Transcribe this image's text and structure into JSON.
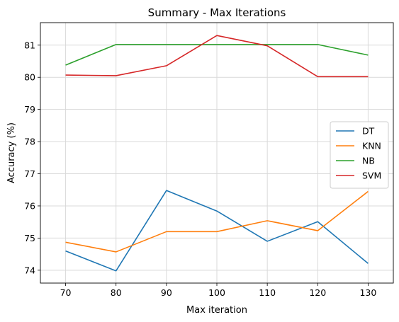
{
  "chart_data": {
    "type": "line",
    "title": "Summary - Max Iterations",
    "xlabel": "Max iteration",
    "ylabel": "Accuracy (%)",
    "x": [
      70,
      80,
      90,
      100,
      110,
      120,
      130
    ],
    "xlim": [
      65,
      135
    ],
    "ylim": [
      73.6,
      81.7
    ],
    "x_ticks": [
      70,
      80,
      90,
      100,
      110,
      120,
      130
    ],
    "y_ticks": [
      74,
      75,
      76,
      77,
      78,
      79,
      80,
      81
    ],
    "grid": true,
    "legend_position": "center-right",
    "series": [
      {
        "name": "DT",
        "color": "#1f77b4",
        "values": [
          74.6,
          73.98,
          76.48,
          75.84,
          74.9,
          75.51,
          74.21
        ]
      },
      {
        "name": "KNN",
        "color": "#ff7f0e",
        "values": [
          74.87,
          74.57,
          75.2,
          75.2,
          75.54,
          75.23,
          76.45
        ]
      },
      {
        "name": "NB",
        "color": "#2ca02c",
        "values": [
          80.38,
          81.02,
          81.02,
          81.02,
          81.02,
          81.02,
          80.69
        ]
      },
      {
        "name": "SVM",
        "color": "#d62728",
        "values": [
          80.07,
          80.05,
          80.36,
          81.3,
          80.98,
          80.02,
          80.02
        ]
      }
    ]
  }
}
